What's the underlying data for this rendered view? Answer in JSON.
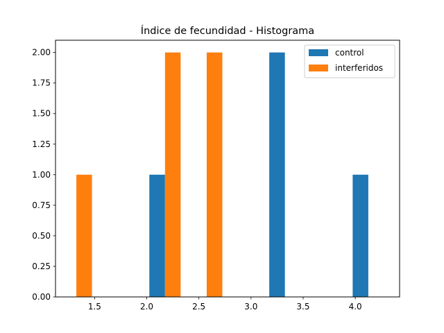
{
  "chart_data": {
    "type": "bar",
    "title": "Índice de fecundidad - Histograma",
    "xlabel": "",
    "ylabel": "",
    "xlim": [
      1.125,
      4.425
    ],
    "ylim": [
      0,
      2.1
    ],
    "x_ticks": [
      1.5,
      2.0,
      2.5,
      3.0,
      3.5,
      4.0
    ],
    "x_tick_labels": [
      "1.5",
      "2.0",
      "2.5",
      "3.0",
      "3.5",
      "4.0"
    ],
    "y_ticks": [
      0,
      0.25,
      0.5,
      0.75,
      1.0,
      1.25,
      1.5,
      1.75,
      2.0
    ],
    "y_tick_labels": [
      "0.00",
      "0.25",
      "0.50",
      "0.75",
      "1.00",
      "1.25",
      "1.50",
      "1.75",
      "2.00"
    ],
    "bar_width": 0.15,
    "legend_position": "top-right",
    "series": [
      {
        "name": "control",
        "color": "#1f77b4",
        "bars": [
          {
            "x": 2.1,
            "value": 1
          },
          {
            "x": 3.25,
            "value": 2
          },
          {
            "x": 4.05,
            "value": 1
          }
        ]
      },
      {
        "name": "interferidos",
        "color": "#ff7f0e",
        "bars": [
          {
            "x": 1.4,
            "value": 1
          },
          {
            "x": 2.25,
            "value": 2
          },
          {
            "x": 2.65,
            "value": 2
          }
        ]
      }
    ]
  }
}
